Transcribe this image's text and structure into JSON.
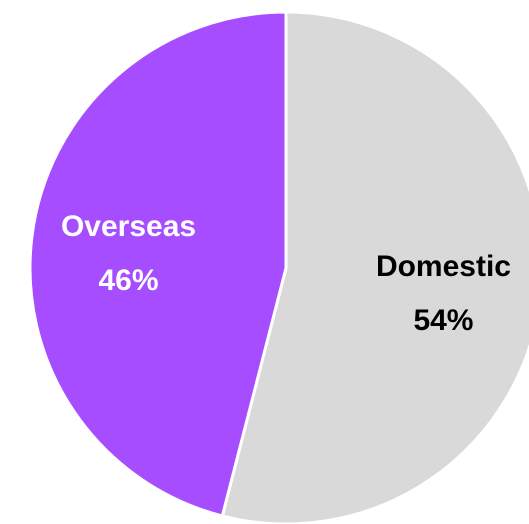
{
  "chart_data": {
    "type": "pie",
    "title": "",
    "slices": [
      {
        "label": "Domestic",
        "value": 54,
        "display_value": "54%",
        "color": "#d9d9d9",
        "text_color": "#000000"
      },
      {
        "label": "Overseas",
        "value": 46,
        "display_value": "46%",
        "color": "#a64dff",
        "text_color": "#ffffff"
      }
    ],
    "start_angle_deg": 0,
    "direction": "clockwise",
    "slice_border_color": "#ffffff",
    "legend": "none"
  }
}
